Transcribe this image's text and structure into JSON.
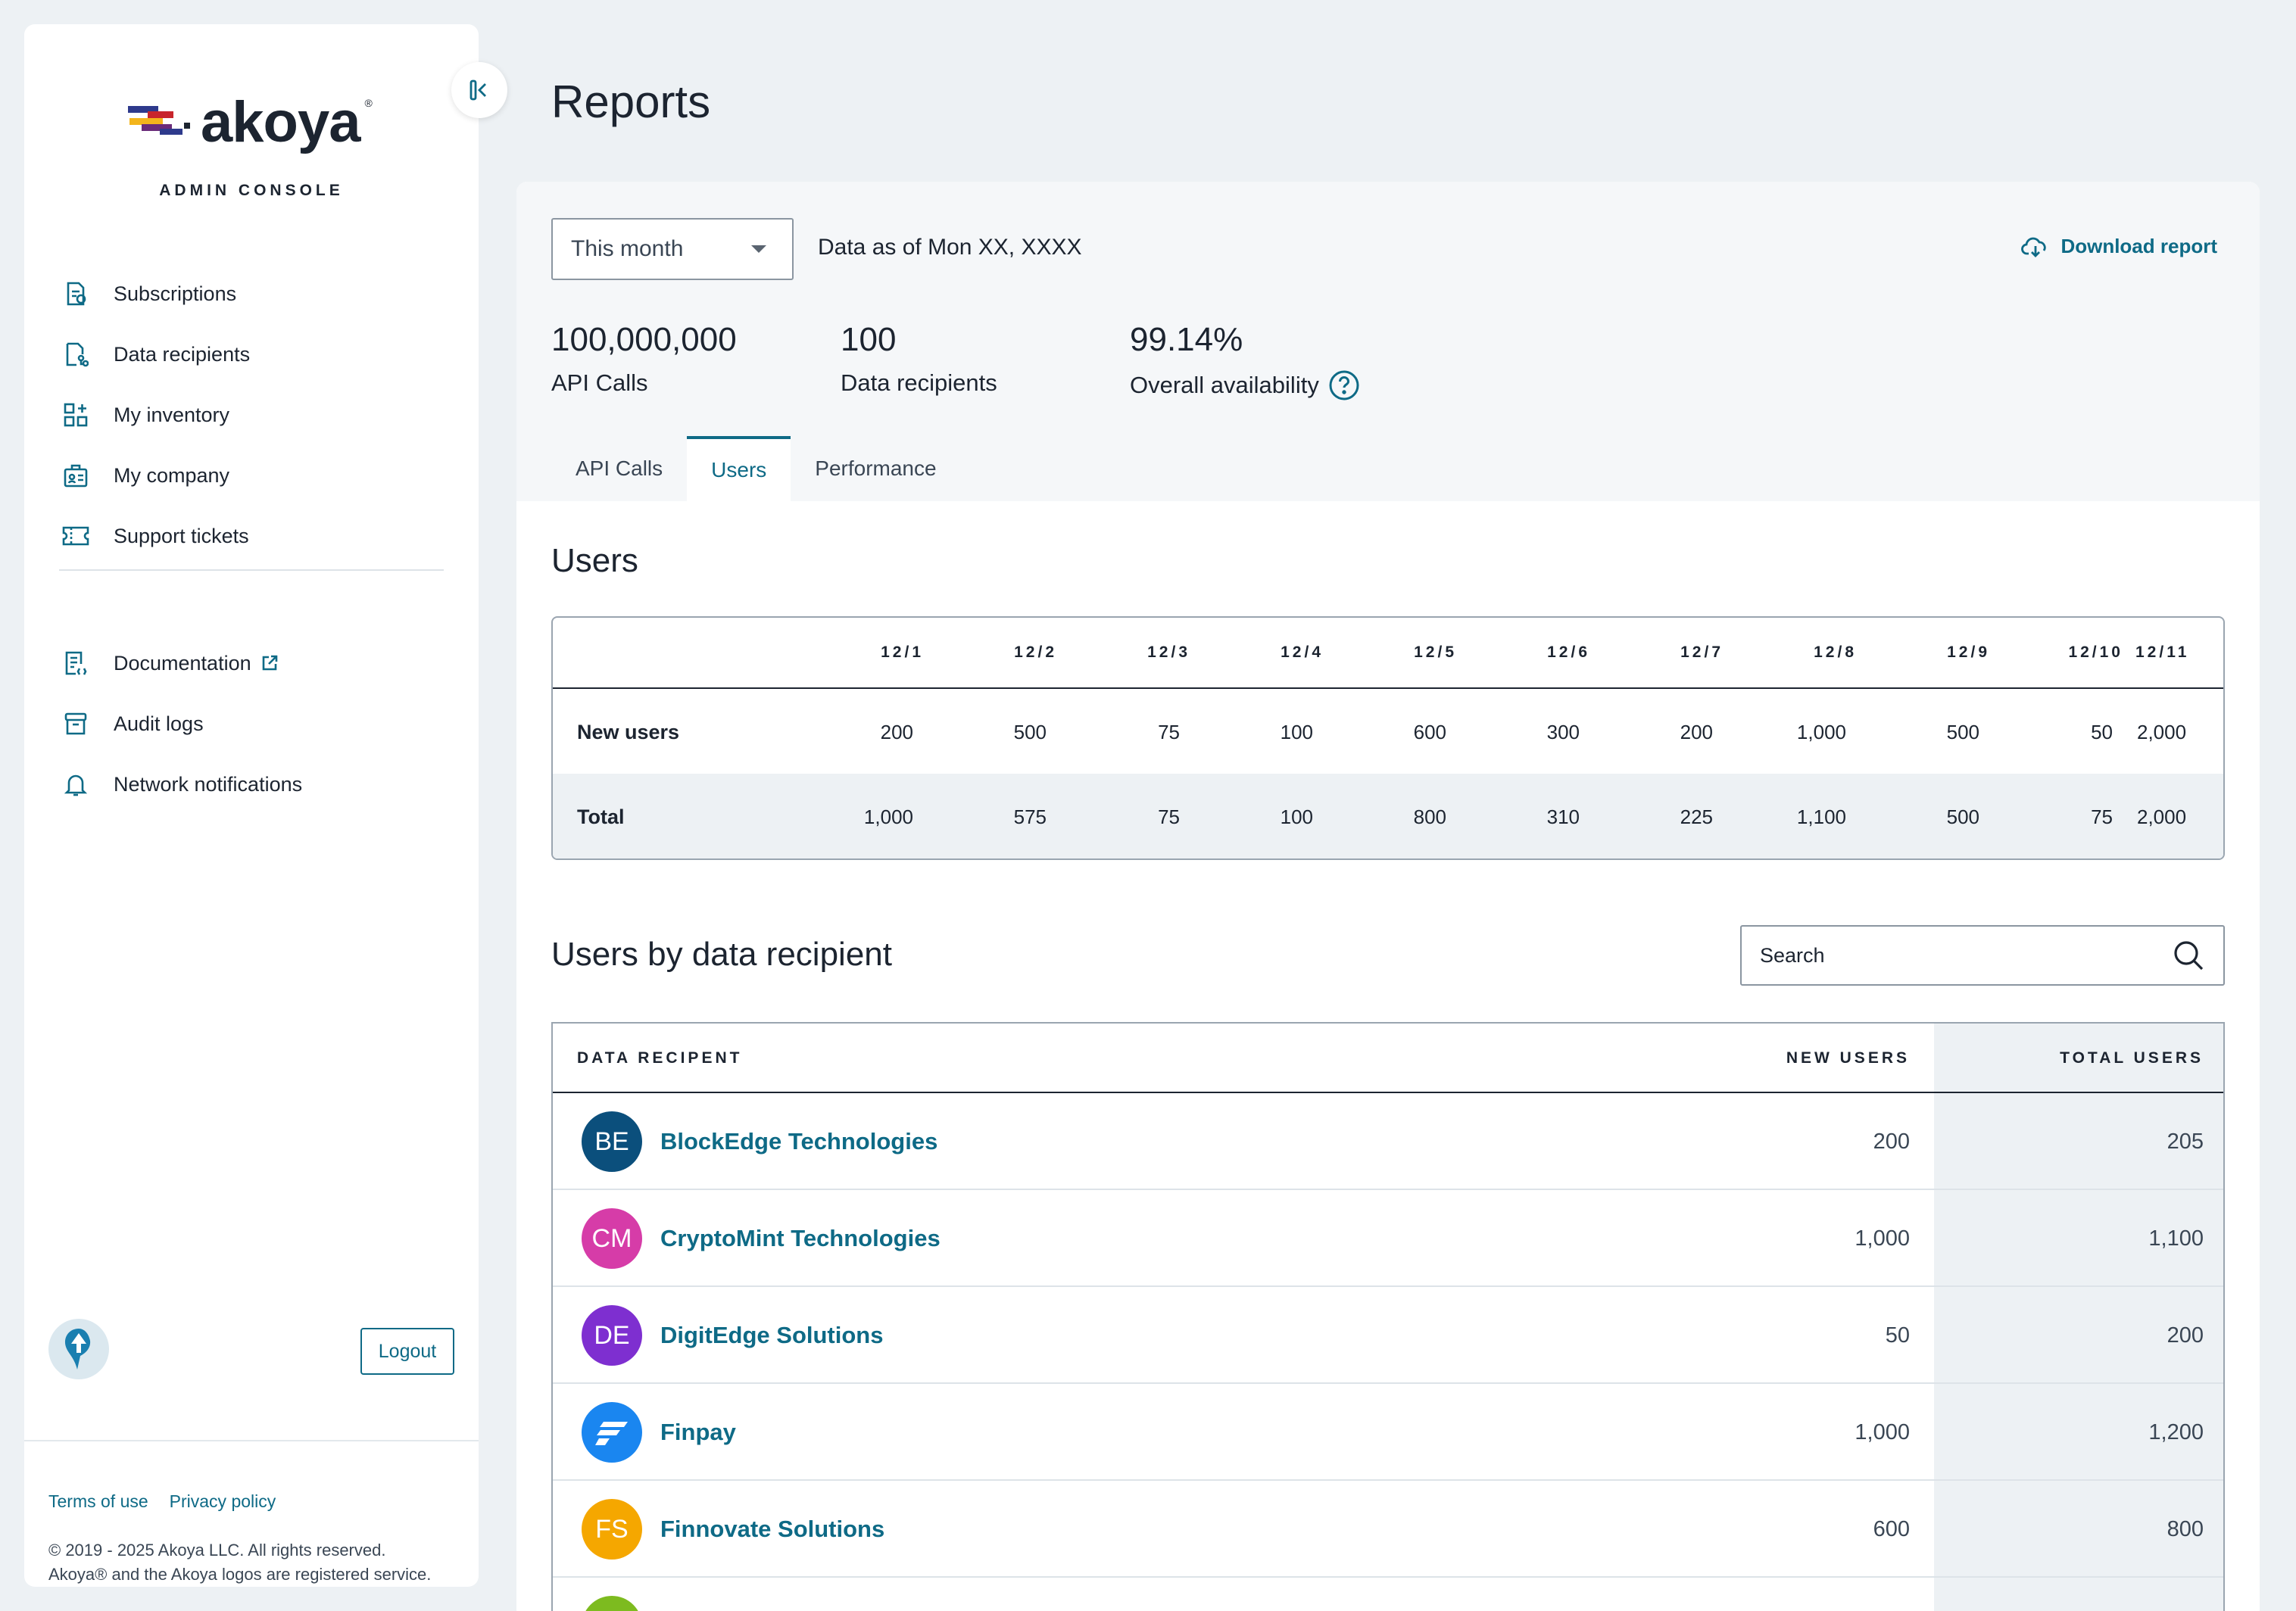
{
  "brand": {
    "name": "akoya",
    "console_label": "ADMIN CONSOLE"
  },
  "nav": {
    "primary": [
      {
        "label": "Subscriptions",
        "icon": "subscriptions-icon"
      },
      {
        "label": "Data recipients",
        "icon": "data-recipients-icon"
      },
      {
        "label": "My inventory",
        "icon": "inventory-icon"
      },
      {
        "label": "My company",
        "icon": "company-icon"
      },
      {
        "label": "Support tickets",
        "icon": "ticket-icon"
      }
    ],
    "secondary": [
      {
        "label": "Documentation",
        "icon": "documentation-icon"
      },
      {
        "label": "Audit logs",
        "icon": "audit-logs-icon"
      },
      {
        "label": "Network notifications",
        "icon": "bell-icon"
      }
    ]
  },
  "sidebar_footer": {
    "logout": "Logout",
    "terms": "Terms of use",
    "privacy": "Privacy policy",
    "copyright_line1": "© 2019 - 2025 Akoya LLC. All rights reserved.",
    "copyright_line2": "Akoya® and the Akoya logos are registered service."
  },
  "page": {
    "title": "Reports"
  },
  "filters": {
    "period": "This month",
    "data_as_of": "Data as of Mon XX, XXXX",
    "download": "Download report"
  },
  "stats": [
    {
      "value": "100,000,000",
      "label": "API Calls"
    },
    {
      "value": "100",
      "label": "Data recipients"
    },
    {
      "value": "99.14%",
      "label": "Overall availability"
    }
  ],
  "tabs": [
    "API Calls",
    "Users",
    "Performance"
  ],
  "users_section": {
    "title": "Users",
    "dates": [
      "12/1",
      "12/2",
      "12/3",
      "12/4",
      "12/5",
      "12/6",
      "12/7",
      "12/8",
      "12/9",
      "12/10",
      "12/11"
    ],
    "rows": [
      {
        "label": "New users",
        "values": [
          "200",
          "500",
          "75",
          "100",
          "600",
          "300",
          "200",
          "1,000",
          "500",
          "50",
          "2,000"
        ]
      },
      {
        "label": "Total",
        "values": [
          "1,000",
          "575",
          "75",
          "100",
          "800",
          "310",
          "225",
          "1,100",
          "500",
          "75",
          "2,000"
        ]
      }
    ]
  },
  "recipients_section": {
    "title": "Users by data recipient",
    "search_placeholder": "Search",
    "columns": [
      "DATA RECIPENT",
      "NEW USERS",
      "TOTAL USERS"
    ],
    "rows": [
      {
        "initials": "BE",
        "name": "BlockEdge Technologies",
        "new_users": "200",
        "total_users": "205",
        "color": "#0b4f7c"
      },
      {
        "initials": "CM",
        "name": "CryptoMint Technologies",
        "new_users": "1,000",
        "total_users": "1,100",
        "color": "#d63ca8"
      },
      {
        "initials": "DE",
        "name": "DigitEdge Solutions",
        "new_users": "50",
        "total_users": "200",
        "color": "#7e2fd0"
      },
      {
        "initials": "",
        "name": "Finpay",
        "new_users": "1,000",
        "total_users": "1,200",
        "color": "#1a86f0"
      },
      {
        "initials": "FS",
        "name": "Finnovate Solutions",
        "new_users": "600",
        "total_users": "800",
        "color": "#f5a700"
      },
      {
        "initials": "",
        "name": "",
        "new_users": "",
        "total_users": "",
        "color": "#7dbb1f"
      }
    ]
  }
}
